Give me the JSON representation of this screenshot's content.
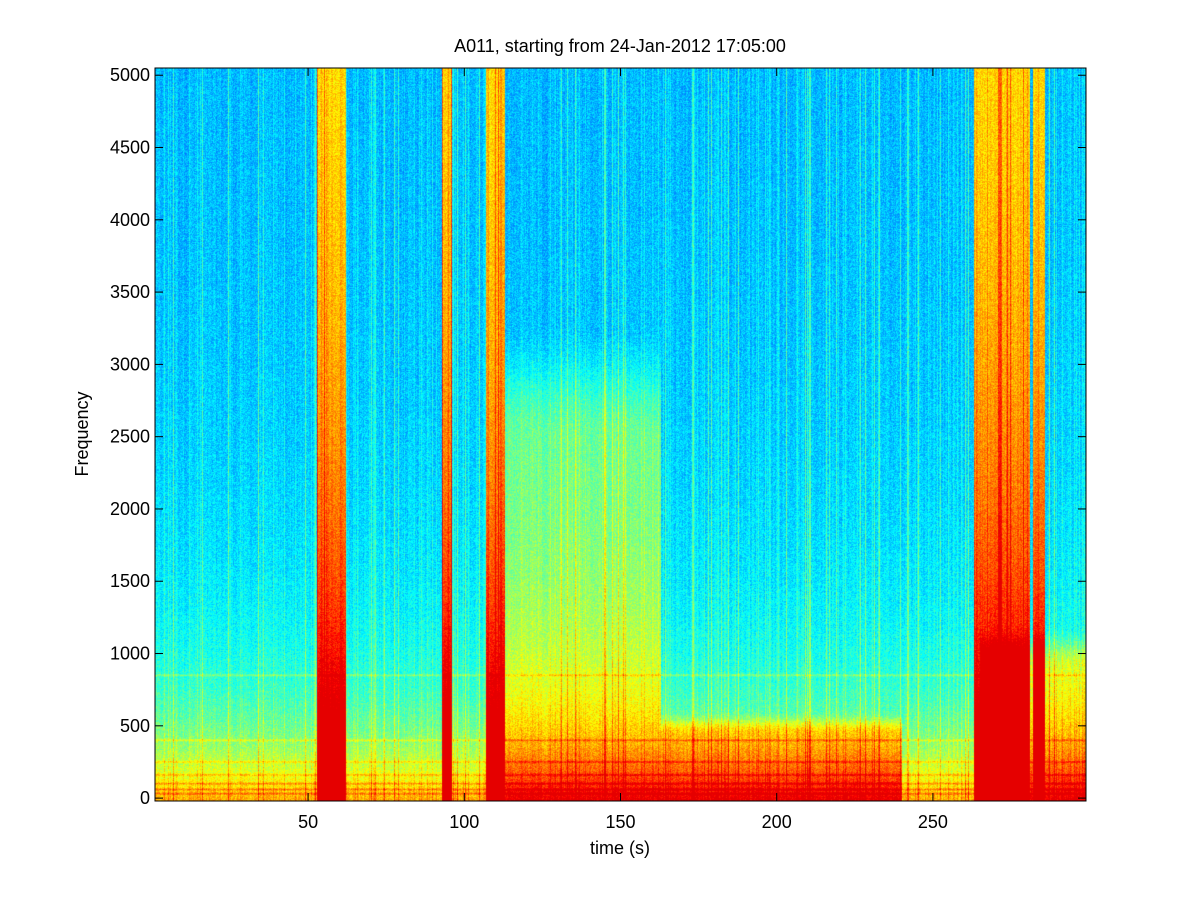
{
  "chart_data": {
    "type": "heatmap",
    "title": "A011, starting from 24-Jan-2012 17:05:00",
    "xlabel": "time (s)",
    "ylabel": "Frequency",
    "xlim": [
      1,
      299
    ],
    "ylim": [
      -20,
      5050
    ],
    "xticks": [
      50,
      100,
      150,
      200,
      250
    ],
    "xtick_labels": [
      "50",
      "100",
      "150",
      "200",
      "250"
    ],
    "yticks": [
      0,
      500,
      1000,
      1500,
      2000,
      2500,
      3000,
      3500,
      4000,
      4500,
      5000
    ],
    "ytick_labels": [
      "0",
      "500",
      "1000",
      "1500",
      "2000",
      "2500",
      "3000",
      "3500",
      "4000",
      "4500",
      "5000"
    ],
    "colormap": "jet",
    "grid": false,
    "broadband_events": [
      {
        "t_start": 53,
        "t_end": 62,
        "f_max": 5050
      },
      {
        "t_start": 93,
        "t_end": 96,
        "f_max": 5050
      },
      {
        "t_start": 107,
        "t_end": 113,
        "f_max": 5050
      },
      {
        "t_start": 263,
        "t_end": 281,
        "f_max": 5050
      },
      {
        "t_start": 282,
        "t_end": 286,
        "f_max": 5050
      }
    ],
    "energetic_regions": [
      {
        "t_start": 113,
        "t_end": 163,
        "f_max": 3300
      },
      {
        "t_start": 163,
        "t_end": 240,
        "f_max": 600
      },
      {
        "t_start": 265,
        "t_end": 299,
        "f_max": 1200
      }
    ],
    "tonal_lines_hz": [
      30,
      60,
      100,
      160,
      250,
      400,
      850
    ]
  }
}
